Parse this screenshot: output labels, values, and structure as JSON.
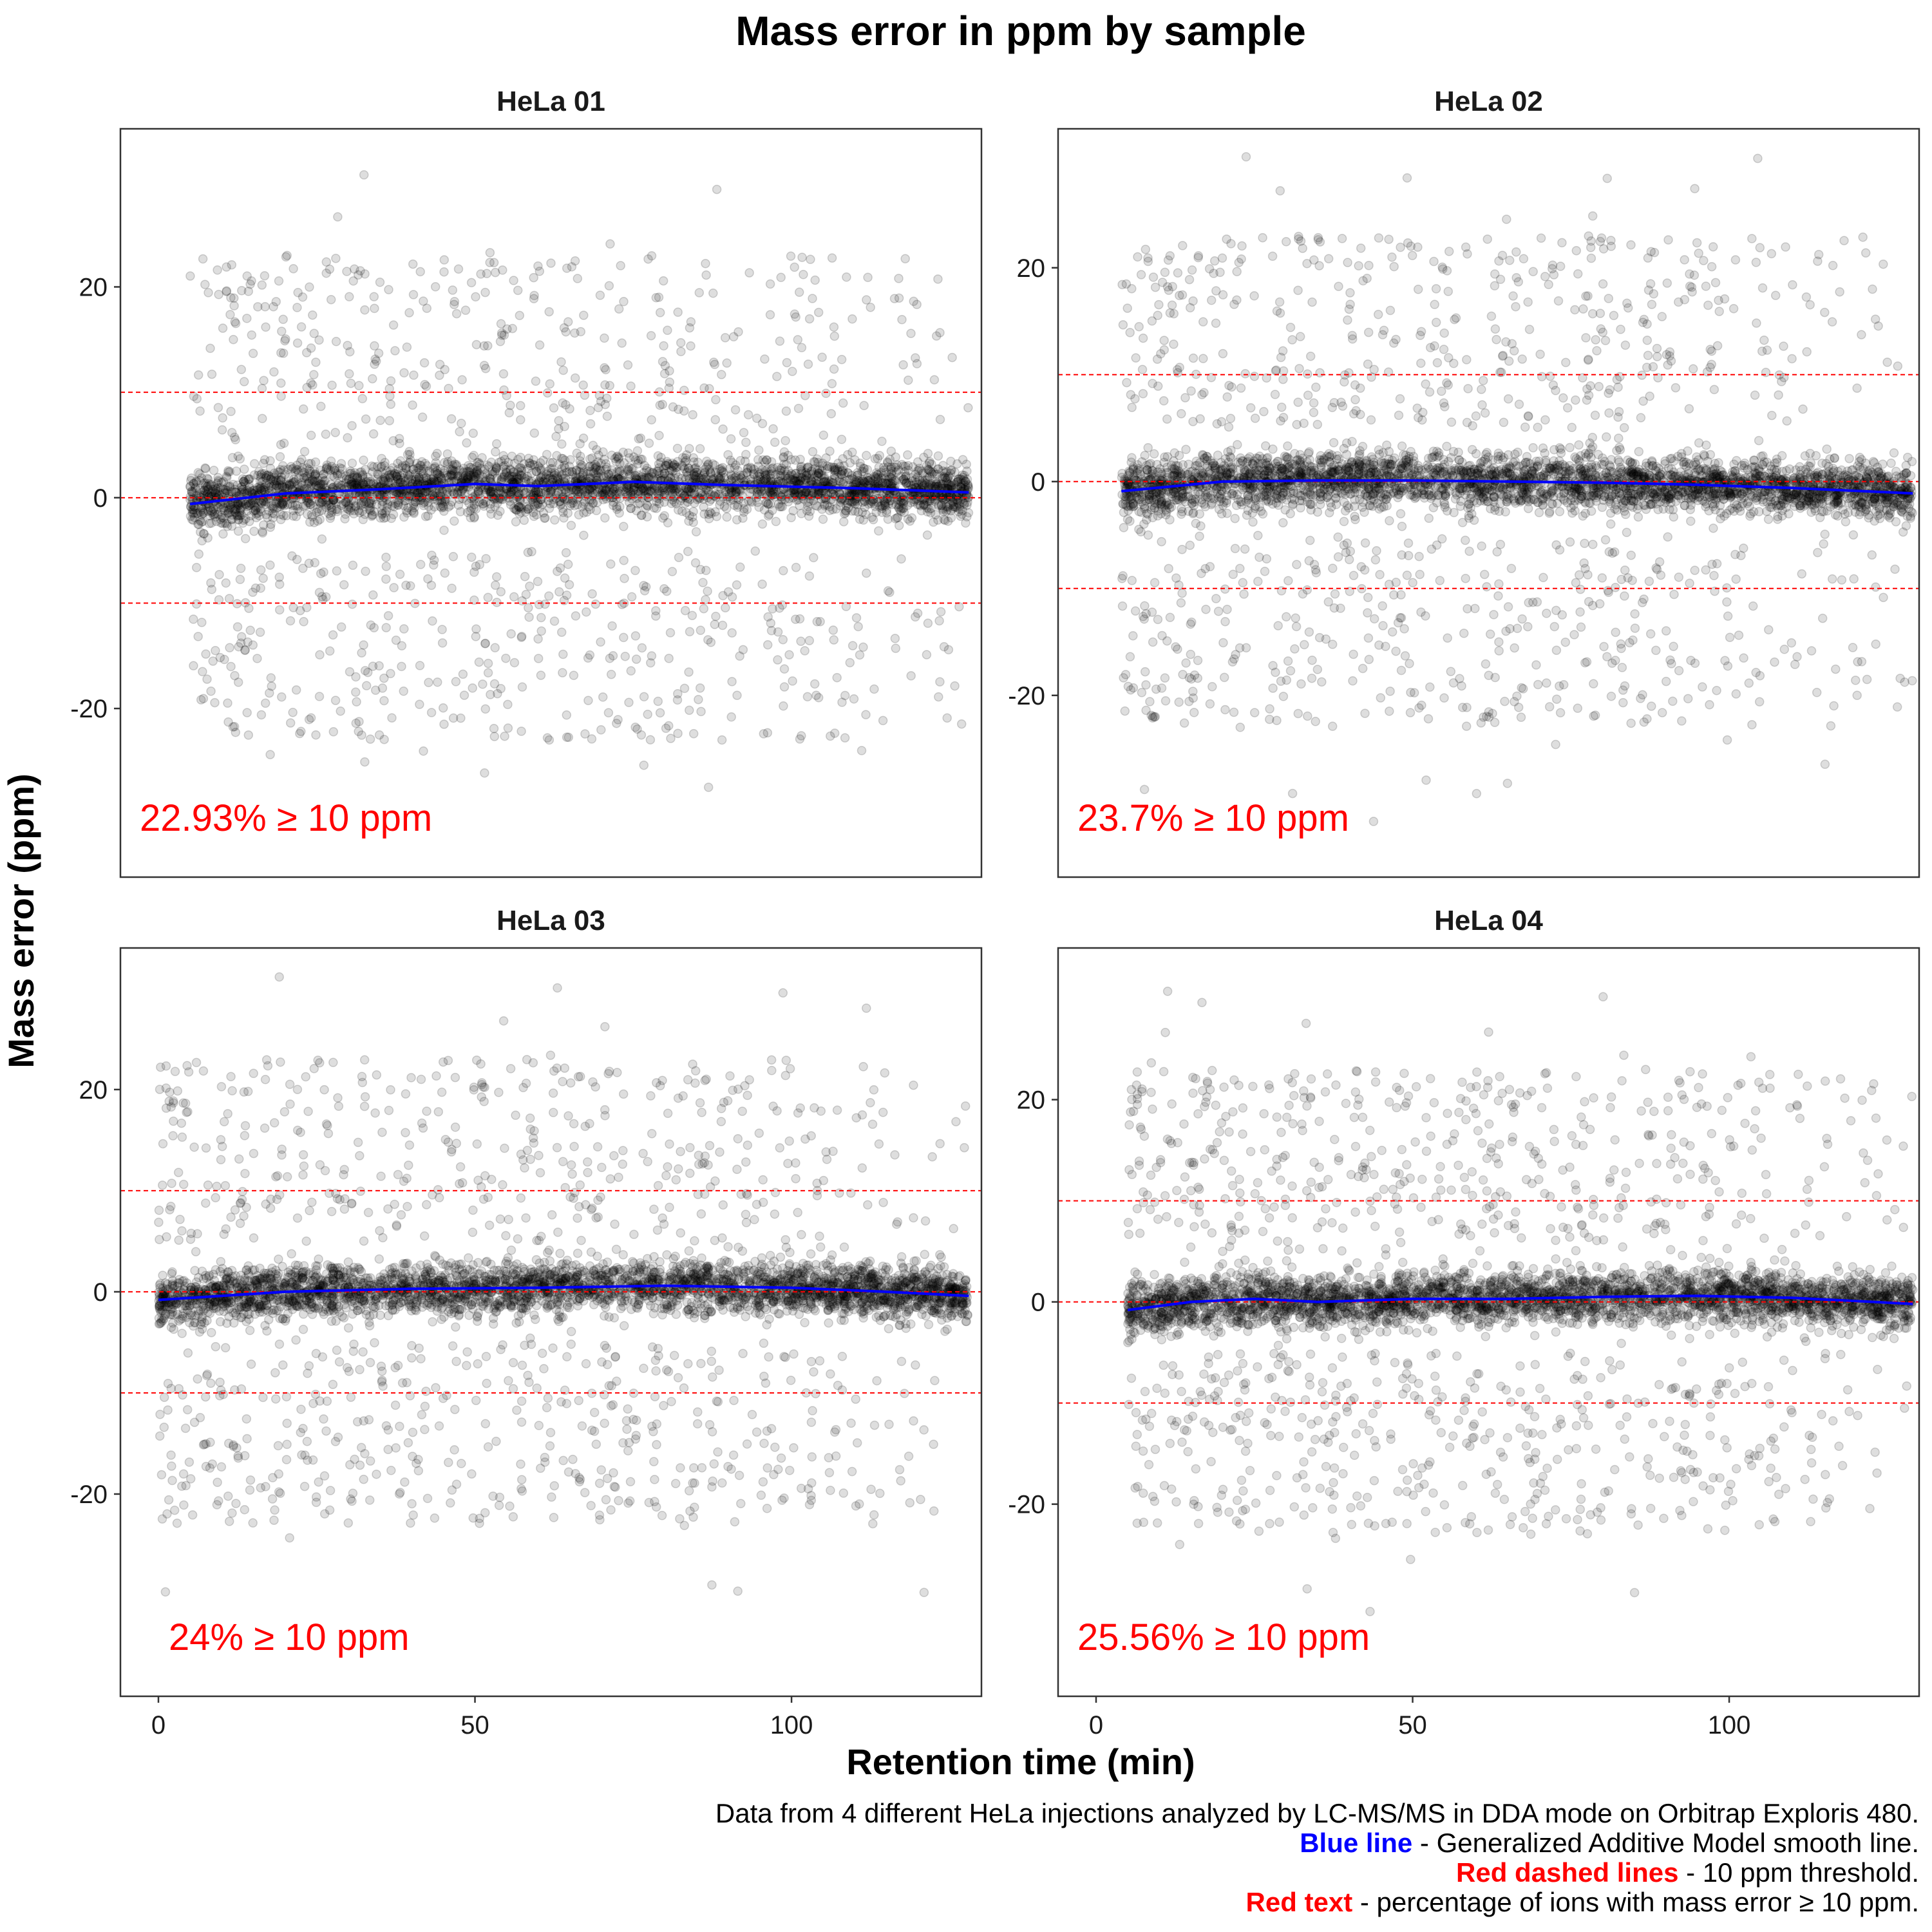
{
  "title": "Mass error in ppm by sample",
  "colors": {
    "points": "#000000",
    "gam_line": "#0000ff",
    "threshold": "#ff0000",
    "annotation": "#ff0000"
  },
  "caption": {
    "line1": "Data from 4 different HeLa injections analyzed by LC-MS/MS in DDA mode on Orbitrap Exploris 480.",
    "line2_bold": "Blue line",
    "line2_rest": " - Generalized Additive Model smooth line.",
    "line3_bold": "Red dashed lines",
    "line3_rest": " - 10 ppm threshold.",
    "line4_bold": "Red text",
    "line4_rest": " - percentage of ions with mass error ≥ 10 ppm."
  },
  "chart_data": [
    {
      "type": "scatter",
      "facet": "HeLa 01",
      "xlabel": "Retention time (min)",
      "ylabel": "Mass error (ppm)",
      "xlim": [
        -6,
        130
      ],
      "ylim": [
        -36,
        35
      ],
      "xticks": [
        0,
        50,
        100
      ],
      "yticks": [
        -20,
        0,
        20
      ],
      "threshold_lines": [
        -10,
        0,
        10
      ],
      "annotation": "22.93% ≥ 10 ppm",
      "outlier_fraction": 0.2293,
      "rt_range": [
        5,
        128
      ],
      "gam_smooth": {
        "x": [
          5,
          20,
          35,
          50,
          60,
          75,
          90,
          110,
          128
        ],
        "y": [
          -0.6,
          0.4,
          0.8,
          1.3,
          1.1,
          1.5,
          1.2,
          0.9,
          0.5
        ]
      }
    },
    {
      "type": "scatter",
      "facet": "HeLa 02",
      "xlabel": "Retention time (min)",
      "ylabel": "Mass error (ppm)",
      "xlim": [
        -6,
        130
      ],
      "ylim": [
        -37,
        33
      ],
      "xticks": [
        0,
        50,
        100
      ],
      "yticks": [
        -20,
        0,
        20
      ],
      "threshold_lines": [
        -10,
        0,
        10
      ],
      "annotation": "23.7% ≥ 10 ppm",
      "outlier_fraction": 0.237,
      "rt_range": [
        4,
        129
      ],
      "gam_smooth": {
        "x": [
          4,
          20,
          35,
          50,
          65,
          80,
          95,
          110,
          129
        ],
        "y": [
          -0.9,
          0.0,
          0.1,
          0.1,
          0.0,
          -0.1,
          -0.3,
          -0.6,
          -1.1
        ]
      }
    },
    {
      "type": "scatter",
      "facet": "HeLa 03",
      "xlabel": "Retention time (min)",
      "ylabel": "Mass error (ppm)",
      "xlim": [
        -6,
        130
      ],
      "ylim": [
        -40,
        34
      ],
      "xticks": [
        0,
        50,
        100
      ],
      "yticks": [
        -20,
        0,
        20
      ],
      "threshold_lines": [
        -10,
        0,
        10
      ],
      "annotation": "24% ≥ 10 ppm",
      "outlier_fraction": 0.24,
      "rt_range": [
        0,
        128
      ],
      "gam_smooth": {
        "x": [
          0,
          20,
          40,
          60,
          80,
          100,
          115,
          128
        ],
        "y": [
          -0.8,
          0.0,
          0.3,
          0.4,
          0.6,
          0.4,
          0.0,
          -0.4
        ]
      }
    },
    {
      "type": "scatter",
      "facet": "HeLa 04",
      "xlabel": "Retention time (min)",
      "ylabel": "Mass error (ppm)",
      "xlim": [
        -6,
        130
      ],
      "ylim": [
        -39,
        35
      ],
      "xticks": [
        0,
        50,
        100
      ],
      "yticks": [
        -20,
        0,
        20
      ],
      "threshold_lines": [
        -10,
        0,
        10
      ],
      "annotation": "25.56% ≥ 10 ppm",
      "outlier_fraction": 0.2556,
      "rt_range": [
        5,
        129
      ],
      "gam_smooth": {
        "x": [
          5,
          15,
          25,
          35,
          50,
          65,
          80,
          95,
          110,
          129
        ],
        "y": [
          -0.8,
          0.0,
          0.3,
          0.0,
          0.3,
          0.3,
          0.5,
          0.6,
          0.4,
          -0.2
        ]
      }
    }
  ]
}
